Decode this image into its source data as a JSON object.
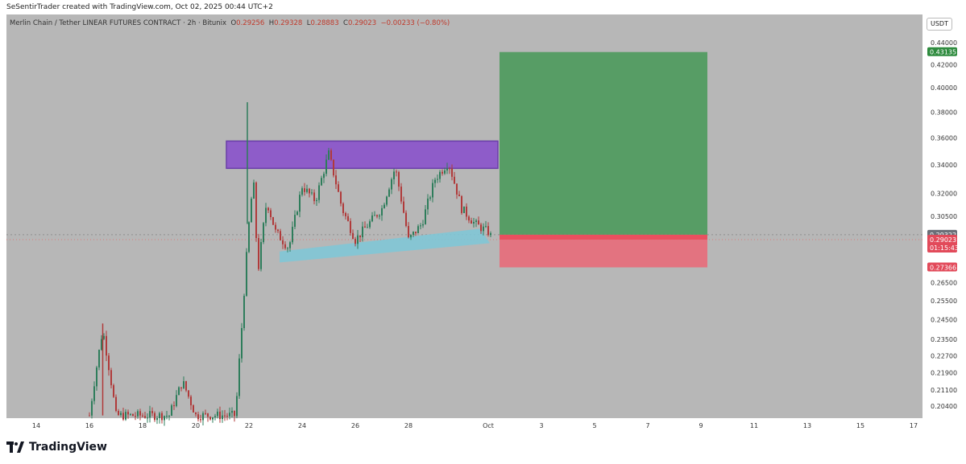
{
  "header": {
    "credit": "SeSentirTrader created with TradingView.com, Oct 02, 2025 00:44 UTC+2"
  },
  "legend": {
    "symbol": "Merlin Chain / Tether LINEAR FUTURES CONTRACT · 2h · Bitunix",
    "open_label": "O",
    "open": "0.29256",
    "high_label": "H",
    "high": "0.29328",
    "low_label": "L",
    "low": "0.28883",
    "close_label": "C",
    "close": "0.29023",
    "change": "−0.00233 (−0.80%)"
  },
  "currency_button": "USDT",
  "footer": {
    "brand": "TradingView"
  },
  "colors": {
    "background": "#b7b7b7",
    "bull": "#2e7d5b",
    "bear": "#b03a3a",
    "supply_zone": "#8e5cc9",
    "trendline_zone": "#7ec8d8",
    "target": "#4c9a5c",
    "stop": "#e86b7a"
  },
  "chart_data": {
    "type": "candlestick",
    "x_tick_labels": [
      "14",
      "16",
      "18",
      "20",
      "22",
      "24",
      "26",
      "28",
      "Oct",
      "3",
      "5",
      "7",
      "9",
      "11",
      "13",
      "15",
      "17"
    ],
    "y_tick_labels": [
      "0.44000",
      "0.42000",
      "0.40000",
      "0.38000",
      "0.36000",
      "0.34000",
      "0.32000",
      "0.30500",
      "0.26500",
      "0.25500",
      "0.24500",
      "0.23500",
      "0.22700",
      "0.21900",
      "0.21100",
      "0.20400"
    ],
    "y_scale": "log",
    "y_range": [
      0.2,
      0.455
    ],
    "price_labels": [
      {
        "value": 0.43135,
        "text": "0.43135",
        "color": "#2e8b3e"
      },
      {
        "value": 0.29322,
        "text": "0.29322",
        "color": "#6b6f78"
      },
      {
        "value": 0.29023,
        "text": "0.29023",
        "color": "#e24a5a",
        "sub": "01:15:43"
      },
      {
        "value": 0.27366,
        "text": "0.27366",
        "color": "#e24a5a"
      }
    ],
    "position_tool": {
      "entry": 0.29322,
      "target": 0.43135,
      "stop": 0.27366,
      "start": "Oct 1",
      "end": "Oct 9"
    },
    "supply_zone": {
      "top": 0.3575,
      "bottom": 0.3375,
      "start": "Sep 21",
      "end": "Oct 1"
    },
    "rising_support_zone": {
      "start": "Sep 23",
      "end": "Oct 1",
      "start_low": 0.2765,
      "start_high": 0.283,
      "end_low": 0.29,
      "end_high": 0.297
    },
    "price_path_approx": [
      [
        "Sep 16",
        0.2
      ],
      [
        "Sep 16 12h",
        0.24
      ],
      [
        "Sep 17",
        0.2
      ],
      [
        "Sep 19",
        0.2
      ],
      [
        "Sep 19 12h",
        0.215
      ],
      [
        "Sep 20",
        0.2
      ],
      [
        "Sep 21 12h",
        0.2
      ],
      [
        "Sep 21 18h",
        0.245
      ],
      [
        "Sep 22",
        0.3
      ],
      [
        "Sep 22 04h",
        0.33
      ],
      [
        "Sep 22 08h",
        0.27
      ],
      [
        "Sep 22 16h",
        0.315
      ],
      [
        "Sep 23",
        0.295
      ],
      [
        "Sep 23 12h",
        0.285
      ],
      [
        "Sep 24",
        0.325
      ],
      [
        "Sep 24 12h",
        0.315
      ],
      [
        "Sep 25",
        0.348
      ],
      [
        "Sep 25 12h",
        0.31
      ],
      [
        "Sep 26",
        0.29
      ],
      [
        "Sep 27",
        0.31
      ],
      [
        "Sep 27 12h",
        0.338
      ],
      [
        "Sep 28",
        0.29
      ],
      [
        "Sep 28 12h",
        0.3
      ],
      [
        "Sep 29",
        0.33
      ],
      [
        "Sep 29 12h",
        0.342
      ],
      [
        "Sep 30",
        0.31
      ],
      [
        "Sep 30 12h",
        0.3
      ],
      [
        "Oct 1",
        0.295
      ],
      [
        "Oct 1 04h",
        0.29023
      ]
    ]
  }
}
